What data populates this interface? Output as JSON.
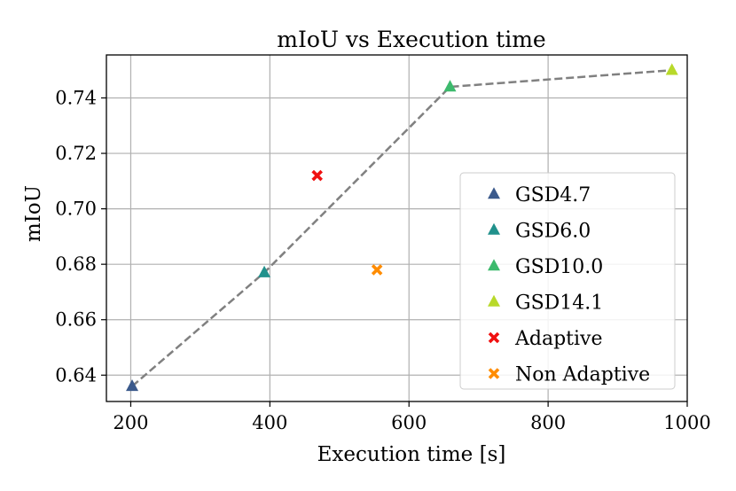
{
  "chart_data": {
    "type": "scatter",
    "title": "mIoU vs Execution time",
    "xlabel": "Execution time [s]",
    "ylabel": "mIoU",
    "xlim": [
      165,
      1000
    ],
    "ylim": [
      0.6305,
      0.7555
    ],
    "xticks": [
      200,
      400,
      600,
      800,
      1000
    ],
    "xtick_labels": [
      "200",
      "400",
      "600",
      "800",
      "1000"
    ],
    "yticks": [
      0.64,
      0.66,
      0.68,
      0.7,
      0.72,
      0.74
    ],
    "ytick_labels": [
      "0.64",
      "0.66",
      "0.68",
      "0.70",
      "0.72",
      "0.74"
    ],
    "grid": true,
    "legend_position": "lower-right",
    "trend_line": {
      "style": "dashed",
      "color": "#808080",
      "x": [
        202,
        392,
        659,
        978
      ],
      "y": [
        0.636,
        0.677,
        0.744,
        0.75
      ]
    },
    "series": [
      {
        "name": "GSD4.7",
        "marker": "triangle",
        "color": "#3b5a8c",
        "x": [
          202
        ],
        "y": [
          0.636
        ]
      },
      {
        "name": "GSD6.0",
        "marker": "triangle",
        "color": "#21918c",
        "x": [
          392
        ],
        "y": [
          0.677
        ]
      },
      {
        "name": "GSD10.0",
        "marker": "triangle",
        "color": "#3dba6d",
        "x": [
          659
        ],
        "y": [
          0.744
        ]
      },
      {
        "name": "GSD14.1",
        "marker": "triangle",
        "color": "#b8d92a",
        "x": [
          978
        ],
        "y": [
          0.75
        ]
      },
      {
        "name": "Adaptive",
        "marker": "x",
        "color": "#f01010",
        "x": [
          468
        ],
        "y": [
          0.712
        ]
      },
      {
        "name": "Non Adaptive",
        "marker": "x",
        "color": "#ff8c00",
        "x": [
          554
        ],
        "y": [
          0.678
        ]
      }
    ]
  }
}
